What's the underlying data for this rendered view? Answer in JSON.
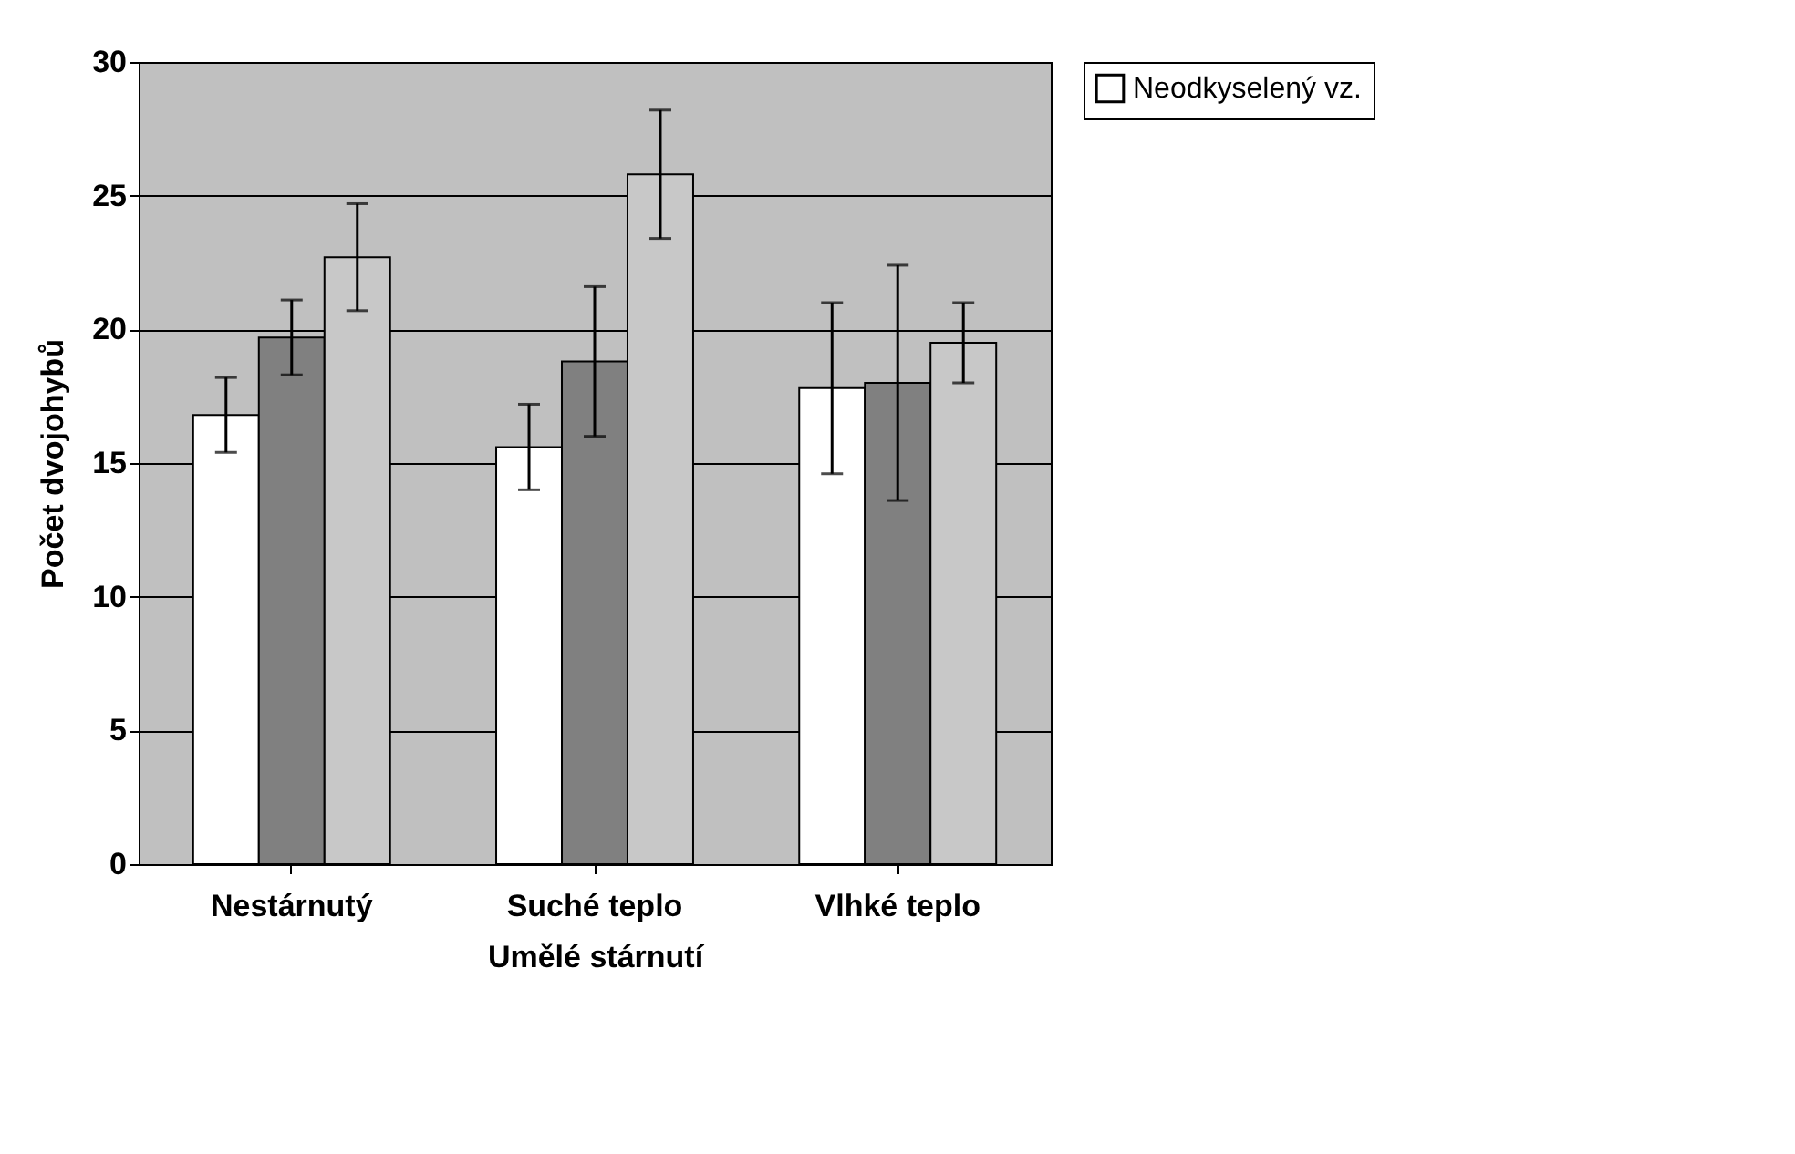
{
  "chart_data": {
    "type": "bar",
    "xlabel": "Umělé stárnutí",
    "ylabel": "Počet dvojohybů",
    "categories": [
      "Nestárnutý",
      "Suché teplo",
      "Vlhké teplo"
    ],
    "series": [
      {
        "name": "Neodkyselený vz.",
        "color": "#ffffff",
        "values": [
          16.8,
          15.6,
          17.8
        ],
        "errors": [
          1.4,
          1.6,
          3.2
        ]
      },
      {
        "color": "#808080",
        "values": [
          19.7,
          18.8,
          18.0
        ],
        "errors": [
          1.4,
          2.8,
          4.4
        ]
      },
      {
        "color": "#c8c8c8",
        "values": [
          22.7,
          25.8,
          19.5
        ],
        "errors": [
          2.0,
          2.4,
          1.5
        ]
      }
    ],
    "ylim": [
      0,
      30
    ],
    "yticks": [
      0,
      5,
      10,
      15,
      20,
      25,
      30
    ],
    "grid": "y",
    "legend": "right"
  }
}
